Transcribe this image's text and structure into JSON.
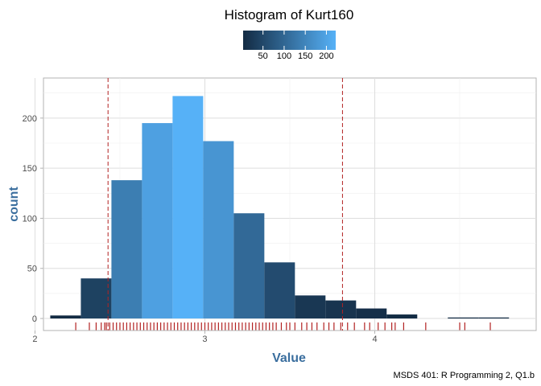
{
  "chart_data": {
    "type": "bar",
    "title": "Histogram of Kurt160",
    "xlabel": "Value",
    "ylabel": "count",
    "caption": "MSDS 401: R Programming 2, Q1.b",
    "xlim": [
      2.05,
      4.95
    ],
    "ylim": [
      -12,
      240
    ],
    "x_ticks": [
      2,
      3,
      4
    ],
    "y_ticks": [
      0,
      50,
      100,
      150,
      200
    ],
    "grid": true,
    "legend": {
      "position": "top",
      "type": "colorbar",
      "ticks": [
        50,
        100,
        150,
        200
      ],
      "min": 3,
      "max": 222,
      "low_color": "#132B43",
      "high_color": "#56B1F7"
    },
    "bins": [
      {
        "x0": 2.09,
        "x1": 2.27,
        "count": 3
      },
      {
        "x0": 2.27,
        "x1": 2.45,
        "count": 40
      },
      {
        "x0": 2.45,
        "x1": 2.63,
        "count": 138
      },
      {
        "x0": 2.63,
        "x1": 2.81,
        "count": 195
      },
      {
        "x0": 2.81,
        "x1": 2.99,
        "count": 222
      },
      {
        "x0": 2.99,
        "x1": 3.17,
        "count": 177
      },
      {
        "x0": 3.17,
        "x1": 3.35,
        "count": 105
      },
      {
        "x0": 3.35,
        "x1": 3.53,
        "count": 56
      },
      {
        "x0": 3.53,
        "x1": 3.71,
        "count": 23
      },
      {
        "x0": 3.71,
        "x1": 3.89,
        "count": 18
      },
      {
        "x0": 3.89,
        "x1": 4.07,
        "count": 10
      },
      {
        "x0": 4.07,
        "x1": 4.25,
        "count": 4
      },
      {
        "x0": 4.25,
        "x1": 4.43,
        "count": 0
      },
      {
        "x0": 4.43,
        "x1": 4.61,
        "count": 1
      },
      {
        "x0": 4.61,
        "x1": 4.79,
        "count": 1
      }
    ],
    "vlines": [
      2.43,
      3.81
    ],
    "vline_color": "#B22222",
    "rug_color": "#B22222",
    "rug_ticks": [
      2.24,
      2.32,
      2.36,
      2.39,
      2.41,
      2.42,
      2.44,
      2.46,
      2.48,
      2.5,
      2.52,
      2.54,
      2.56,
      2.58,
      2.6,
      2.62,
      2.64,
      2.66,
      2.68,
      2.7,
      2.72,
      2.74,
      2.76,
      2.78,
      2.8,
      2.82,
      2.84,
      2.86,
      2.88,
      2.9,
      2.92,
      2.94,
      2.96,
      2.98,
      3.0,
      3.02,
      3.04,
      3.06,
      3.08,
      3.1,
      3.12,
      3.14,
      3.16,
      3.18,
      3.2,
      3.22,
      3.24,
      3.26,
      3.28,
      3.3,
      3.32,
      3.34,
      3.36,
      3.38,
      3.4,
      3.42,
      3.45,
      3.48,
      3.5,
      3.53,
      3.57,
      3.6,
      3.63,
      3.66,
      3.7,
      3.73,
      3.76,
      3.8,
      3.84,
      3.88,
      3.94,
      3.97,
      4.02,
      4.06,
      4.1,
      4.12,
      4.17,
      4.3,
      4.5,
      4.53,
      4.68
    ]
  }
}
